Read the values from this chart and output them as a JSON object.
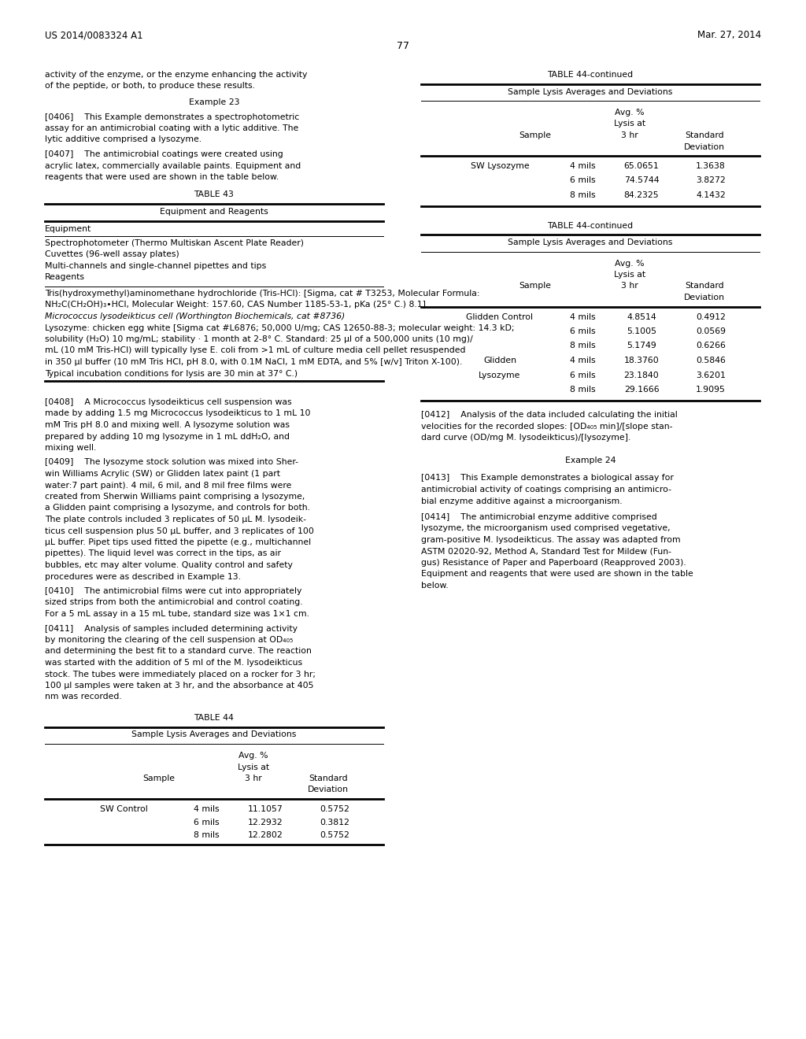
{
  "bg_color": "#ffffff",
  "header_left": "US 2014/0083324 A1",
  "header_right": "Mar. 27, 2014",
  "page_number": "77",
  "top_text_left": [
    "activity of the enzyme, or the enzyme enhancing the activity",
    "of the peptide, or both, to produce these results."
  ],
  "example23_title": "Example 23",
  "para406_lines": [
    "[0406]    This Example demonstrates a spectrophotometric",
    "assay for an antimicrobial coating with a lytic additive. The",
    "lytic additive comprised a lysozyme."
  ],
  "para407_lines": [
    "[0407]    The antimicrobial coatings were created using",
    "acrylic latex, commercially available paints. Equipment and",
    "reagents that were used are shown in the table below."
  ],
  "table43_title": "TABLE 43",
  "table43_header": "Equipment and Reagents",
  "table43_section1": "Equipment",
  "table43_items1": [
    "Spectrophotometer (Thermo Multiskan Ascent Plate Reader)",
    "Cuvettes (96-well assay plates)",
    "Multi-channels and single-channel pipettes and tips",
    "Reagents"
  ],
  "table43_reagents_lines": [
    "Tris(hydroxymethyl)aminomethane hydrochloride (Tris-HCl): [Sigma, cat # T3253, Molecular Formula:",
    "NH₂C(CH₂OH)₃•HCl, Molecular Weight: 157.60, CAS Number 1185-53-1, pKa (25° C.) 8.1]",
    "Micrococcus lysodeikticus cell (Worthington Biochemicals, cat #8736)",
    "Lysozyme: chicken egg white [Sigma cat #L6876; 50,000 U/mg; CAS 12650-88-3; molecular weight: 14.3 kD;",
    "solubility (H₂O) 10 mg/mL; stability · 1 month at 2-8° C. Standard: 25 μl of a 500,000 units (10 mg)/",
    "mL (10 mM Tris-HCl) will typically lyse E. coli from >1 mL of culture media cell pellet resuspended",
    "in 350 μl buffer (10 mM Tris HCl, pH 8.0, with 0.1M NaCl, 1 mM EDTA, and 5% [w/v] Triton X-100).",
    "Typical incubation conditions for lysis are 30 min at 37° C.)"
  ],
  "table43_reagents_italic": [
    2
  ],
  "para408_lines": [
    "[0408]    A Micrococcus lysodeikticus cell suspension was",
    "made by adding 1.5 mg Micrococcus lysodeikticus to 1 mL 10",
    "mM Tris pH 8.0 and mixing well. A lysozyme solution was",
    "prepared by adding 10 mg lysozyme in 1 mL ddH₂O, and",
    "mixing well."
  ],
  "para409_lines": [
    "[0409]    The lysozyme stock solution was mixed into Sher-",
    "win Williams Acrylic (SW) or Glidden latex paint (1 part",
    "water:7 part paint). 4 mil, 6 mil, and 8 mil free films were",
    "created from Sherwin Williams paint comprising a lysozyme,",
    "a Glidden paint comprising a lysozyme, and controls for both.",
    "The plate controls included 3 replicates of 50 μL M. lysodeik-",
    "ticus cell suspension plus 50 μL buffer, and 3 replicates of 100",
    "μL buffer. Pipet tips used fitted the pipette (e.g., multichannel",
    "pipettes). The liquid level was correct in the tips, as air",
    "bubbles, etc may alter volume. Quality control and safety",
    "procedures were as described in Example 13."
  ],
  "para410_lines": [
    "[0410]    The antimicrobial films were cut into appropriately",
    "sized strips from both the antimicrobial and control coating.",
    "For a 5 mL assay in a 15 mL tube, standard size was 1×1 cm."
  ],
  "para411_lines": [
    "[0411]    Analysis of samples included determining activity",
    "by monitoring the clearing of the cell suspension at OD₄₀₅",
    "and determining the best fit to a standard curve. The reaction",
    "was started with the addition of 5 ml of the M. lysodeikticus",
    "stock. The tubes were immediately placed on a rocker for 3 hr;",
    "100 μl samples were taken at 3 hr, and the absorbance at 405",
    "nm was recorded."
  ],
  "table44_top_title": "TABLE 44-continued",
  "table44_top_section": "Sample Lysis Averages and Deviations",
  "table44_top_rows": [
    [
      "SW Lysozyme",
      "4 mils",
      "65.0651",
      "1.3638"
    ],
    [
      "",
      "6 mils",
      "74.5744",
      "3.8272"
    ],
    [
      "",
      "8 mils",
      "84.2325",
      "4.1432"
    ]
  ],
  "table44_mid_title": "TABLE 44-continued",
  "table44_mid_section": "Sample Lysis Averages and Deviations",
  "table44_mid_rows": [
    [
      "Glidden Control",
      "4 mils",
      "4.8514",
      "0.4912"
    ],
    [
      "",
      "6 mils",
      "5.1005",
      "0.0569"
    ],
    [
      "",
      "8 mils",
      "5.1749",
      "0.6266"
    ],
    [
      "Glidden",
      "4 mils",
      "18.3760",
      "0.5846"
    ],
    [
      "Lysozyme",
      "6 mils",
      "23.1840",
      "3.6201"
    ],
    [
      "",
      "8 mils",
      "29.1666",
      "1.9095"
    ]
  ],
  "table44_bot_title": "TABLE 44",
  "table44_bot_section": "Sample Lysis Averages and Deviations",
  "table44_bot_rows": [
    [
      "SW Control",
      "4 mils",
      "11.1057",
      "0.5752"
    ],
    [
      "",
      "6 mils",
      "12.2932",
      "0.3812"
    ],
    [
      "",
      "8 mils",
      "12.2802",
      "0.5752"
    ]
  ],
  "para412_lines": [
    "[0412]    Analysis of the data included calculating the initial",
    "velocities for the recorded slopes: [OD₄₀₅ min]/[slope stan-",
    "dard curve (OD/mg M. lysodeikticus)/[lysozyme]."
  ],
  "example24_title": "Example 24",
  "para413_lines": [
    "[0413]    This Example demonstrates a biological assay for",
    "antimicrobial activity of coatings comprising an antimicro-",
    "bial enzyme additive against a microorganism."
  ],
  "para414_lines": [
    "[0414]    The antimicrobial enzyme additive comprised",
    "lysozyme, the microorganism used comprised vegetative,",
    "gram-positive M. lysodeikticus. The assay was adapted from",
    "ASTM 02020-92, Method A, Standard Test for Mildew (Fun-",
    "gus) Resistance of Paper and Paperboard (Reapproved 2003).",
    "Equipment and reagents that were used are shown in the table",
    "below."
  ]
}
